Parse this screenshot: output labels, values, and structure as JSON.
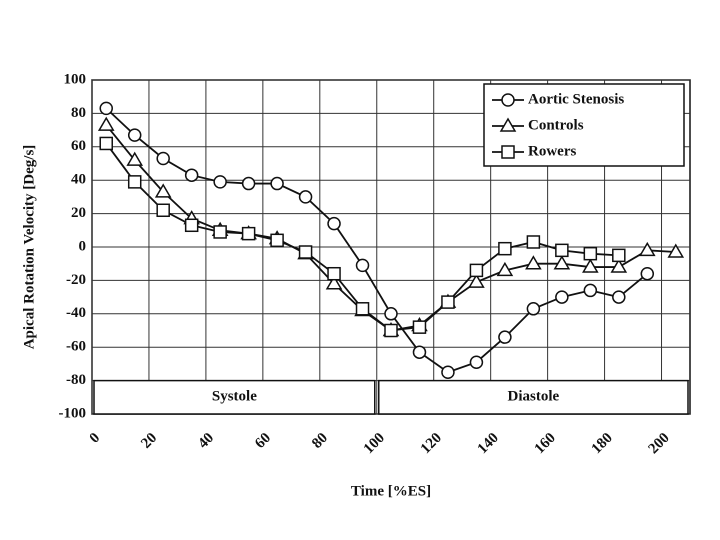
{
  "chart_data": {
    "type": "line",
    "x_label": "Time [%ES]",
    "y_label": "Apical Rotation Velocity [Deg/s]",
    "x": [
      5,
      15,
      25,
      35,
      45,
      55,
      65,
      75,
      85,
      95,
      105,
      115,
      125,
      135,
      145,
      155,
      165,
      175,
      185,
      195,
      205
    ],
    "series": [
      {
        "name": "Aortic Stenosis",
        "marker": "circle",
        "color": "#111111",
        "values": [
          83,
          67,
          53,
          43,
          39,
          38,
          38,
          30,
          14,
          -11,
          -40,
          -63,
          -75,
          -69,
          -54,
          -37,
          -30,
          -26,
          -30,
          -16,
          null
        ]
      },
      {
        "name": "Controls",
        "marker": "triangle",
        "color": "#111111",
        "values": [
          73,
          52,
          33,
          17,
          10,
          8,
          5,
          -4,
          -22,
          -38,
          -50,
          -47,
          -33,
          -21,
          -14,
          -10,
          -10,
          -12,
          -12,
          -2,
          -3
        ]
      },
      {
        "name": "Rowers",
        "marker": "square",
        "color": "#111111",
        "values": [
          62,
          39,
          22,
          13,
          9,
          8,
          4,
          -3,
          -16,
          -37,
          -50,
          -48,
          -33,
          -14,
          -1,
          3,
          -2,
          -4,
          -5,
          null,
          null
        ]
      }
    ],
    "phases": [
      {
        "label": "Systole",
        "start": 0,
        "end": 100
      },
      {
        "label": "Diastole",
        "start": 100,
        "end": 210
      }
    ],
    "phase_band": [
      -80,
      -100
    ],
    "xlim": [
      0,
      210
    ],
    "xticks": [
      0,
      20,
      40,
      60,
      80,
      100,
      120,
      140,
      160,
      180,
      200
    ],
    "ylim": [
      -100,
      100
    ],
    "yticks": [
      -100,
      -80,
      -60,
      -40,
      -20,
      0,
      20,
      40,
      60,
      80,
      100
    ],
    "grid": true,
    "legend": "top-right"
  }
}
